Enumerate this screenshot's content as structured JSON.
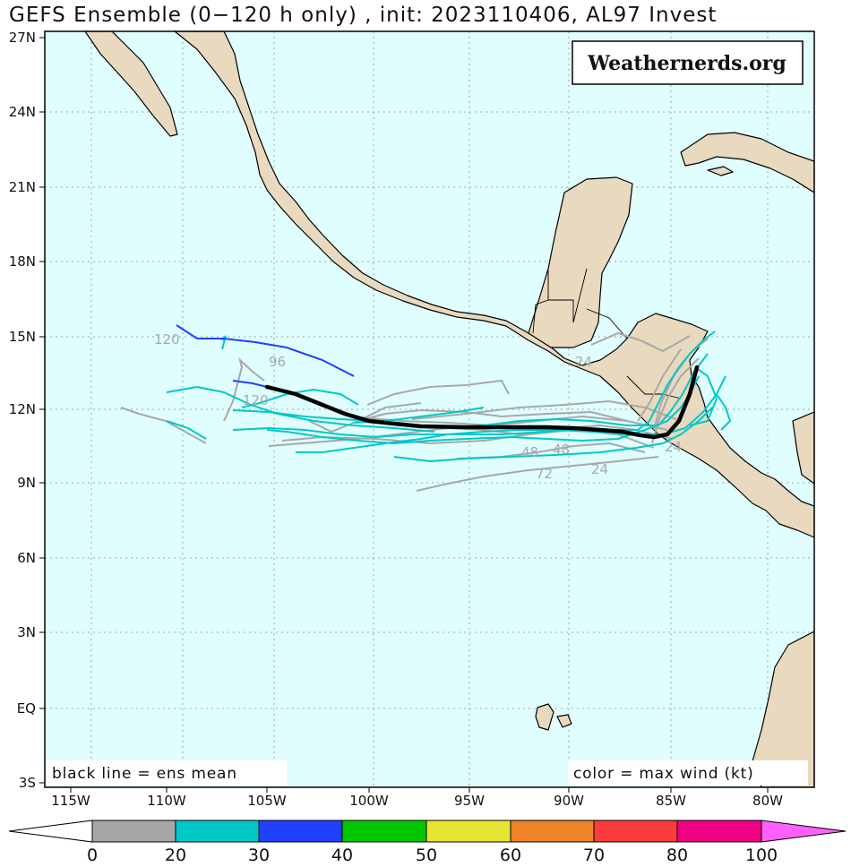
{
  "title": "GEFS Ensemble (0−120 h only) , init: 2023110406, AL97 Invest",
  "watermark": "Weathernerds.org",
  "legend_left": "black line = ens mean",
  "legend_right": "color = max wind (kt)",
  "lat_labels": [
    "27N",
    "24N",
    "21N",
    "18N",
    "15N",
    "12N",
    "9N",
    "6N",
    "3N",
    "EQ",
    "3S"
  ],
  "lon_labels": [
    "115W",
    "110W",
    "105W",
    "100W",
    "95W",
    "90W",
    "85W",
    "80W"
  ],
  "colorbar": {
    "labels": [
      "0",
      "20",
      "30",
      "40",
      "50",
      "60",
      "70",
      "80",
      "100"
    ],
    "colors": [
      "#a6a6a6",
      "#00c8c8",
      "#2040ff",
      "#00c800",
      "#e6e632",
      "#f08228",
      "#fa3c3c",
      "#f00082",
      "#ff60ff"
    ]
  },
  "colors": {
    "ocean": "#e0fefe",
    "land": "#e8d9bf",
    "ens_mean": "#000000"
  },
  "track_hour_labels": [
    "120",
    "96",
    "120",
    "24",
    "48",
    "48",
    "72",
    "24",
    "24"
  ]
}
